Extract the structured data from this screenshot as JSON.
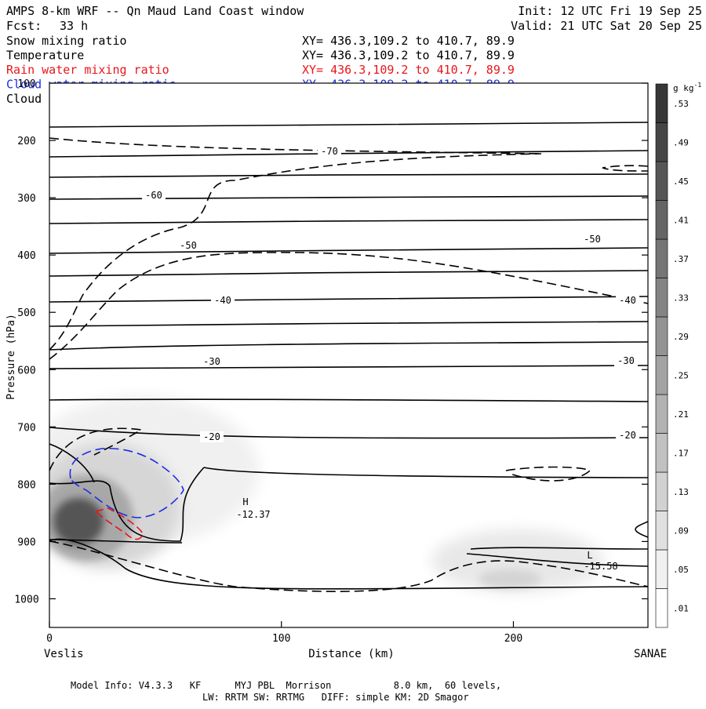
{
  "header": {
    "title": "AMPS 8-km WRF -- Qn Maud Land Coast window",
    "init": "Init: 12 UTC Fri 19 Sep 25",
    "fcst_label": "Fcst:",
    "fcst_value": "33 h",
    "valid": "Valid: 21 UTC Sat 20 Sep 25",
    "xy_line": "XY= 436.3,109.2 to 410.7, 89.9",
    "fields": [
      {
        "label": "Snow mixing ratio",
        "color": "#000000"
      },
      {
        "label": "Temperature",
        "color": "#000000"
      },
      {
        "label": "Rain water mixing ratio",
        "color": "#e8161c"
      },
      {
        "label": "Cloud water mixing ratio",
        "color": "#1d2ee0"
      },
      {
        "label": "Cloud ice mixing ratio",
        "color": "#000000"
      }
    ]
  },
  "chart_data": {
    "type": "contour",
    "xlabel": "Distance (km)",
    "ylabel": "Pressure (hPa)",
    "xlim": [
      0,
      258
    ],
    "ylim": [
      1050,
      100
    ],
    "x_ticks": [
      0,
      100,
      200
    ],
    "y_ticks": [
      100,
      200,
      300,
      400,
      500,
      600,
      700,
      800,
      900,
      1000
    ],
    "x_endpoints": {
      "left": "Veslis",
      "right": "SANAE"
    },
    "colorbar": {
      "unit": "g kg",
      "unit_exp": "-1",
      "levels": [
        ".01",
        ".05",
        ".09",
        ".13",
        ".17",
        ".21",
        ".25",
        ".29",
        ".33",
        ".37",
        ".41",
        ".45",
        ".49",
        ".53"
      ],
      "vmin": 0,
      "vmax": 0.57
    },
    "temperature_labels": [
      "-70",
      "-60",
      "-50",
      "-50",
      "-40",
      "-40",
      "-30",
      "-30",
      "-20",
      "-20"
    ],
    "extrema": [
      {
        "type": "H",
        "value": "-12.37"
      },
      {
        "type": "L",
        "value": "-15.58"
      }
    ]
  },
  "footer": {
    "line1": "Model Info: V4.3.3   KF      MYJ PBL  Morrison           8.0 km,  60 levels,",
    "line2": "LW: RRTM SW: RRTMG   DIFF: simple KM: 2D Smagor"
  }
}
